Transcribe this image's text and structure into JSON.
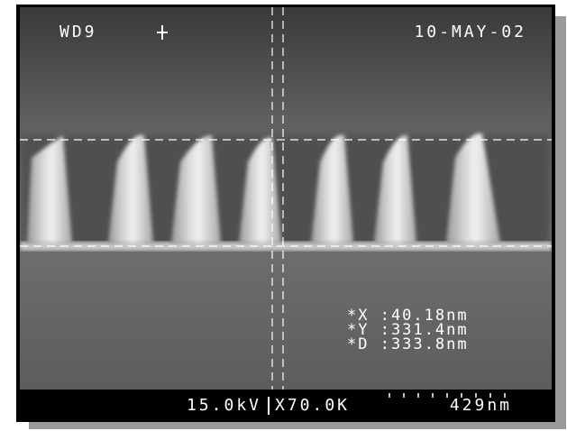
{
  "overlay": {
    "working_distance": "WD9",
    "date": "10-MAY-02",
    "measurements": [
      "*X :40.18nm",
      "*Y :331.4nm",
      "*D :333.8nm"
    ]
  },
  "footer": {
    "voltage": "15.0kV",
    "magnification": "X70.0K",
    "scale": "429nm"
  }
}
